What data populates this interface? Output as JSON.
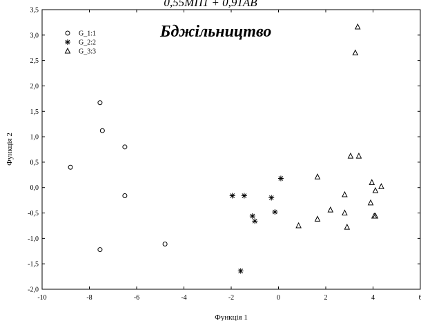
{
  "header_fragment": "0,55МП1 + 0,91АВ",
  "chart_data": {
    "type": "scatter",
    "title": "Бджільництво",
    "xlabel": "Функція 1",
    "ylabel": "Функція 2",
    "xlim": [
      -10,
      6
    ],
    "ylim": [
      -2.0,
      3.5
    ],
    "x_ticks": [
      "-10",
      "-8",
      "-6",
      "-4",
      "-2",
      "0",
      "2",
      "4",
      "6"
    ],
    "y_ticks": [
      "-2,0",
      "-1,5",
      "-1,0",
      "-0,5",
      "0,0",
      "0,5",
      "1,0",
      "1,5",
      "2,0",
      "2,5",
      "3,0",
      "3,5"
    ],
    "grid": false,
    "legend_position": "top-left",
    "series": [
      {
        "name": "G_1:1",
        "marker": "circle",
        "points": [
          [
            -8.8,
            0.4
          ],
          [
            -7.55,
            1.67
          ],
          [
            -7.45,
            1.12
          ],
          [
            -6.5,
            0.8
          ],
          [
            -6.5,
            -0.16
          ],
          [
            -7.55,
            -1.22
          ],
          [
            -4.8,
            -1.11
          ]
        ]
      },
      {
        "name": "G_2:2",
        "marker": "asterisk",
        "points": [
          [
            -1.95,
            -0.16
          ],
          [
            -1.45,
            -0.16
          ],
          [
            -1.1,
            -0.56
          ],
          [
            -1.0,
            -0.66
          ],
          [
            -0.3,
            -0.2
          ],
          [
            -0.15,
            -0.48
          ],
          [
            0.1,
            0.18
          ],
          [
            -1.6,
            -1.64
          ]
        ]
      },
      {
        "name": "G_3:3",
        "marker": "triangle",
        "points": [
          [
            3.35,
            3.16
          ],
          [
            3.25,
            2.65
          ],
          [
            3.05,
            0.62
          ],
          [
            3.4,
            0.62
          ],
          [
            1.65,
            0.21
          ],
          [
            3.95,
            0.1
          ],
          [
            4.35,
            0.02
          ],
          [
            4.1,
            -0.06
          ],
          [
            2.8,
            -0.14
          ],
          [
            3.9,
            -0.3
          ],
          [
            2.2,
            -0.44
          ],
          [
            2.8,
            -0.5
          ],
          [
            4.05,
            -0.56
          ],
          [
            4.1,
            -0.56
          ],
          [
            1.65,
            -0.62
          ],
          [
            0.85,
            -0.75
          ],
          [
            2.9,
            -0.78
          ]
        ]
      }
    ]
  }
}
